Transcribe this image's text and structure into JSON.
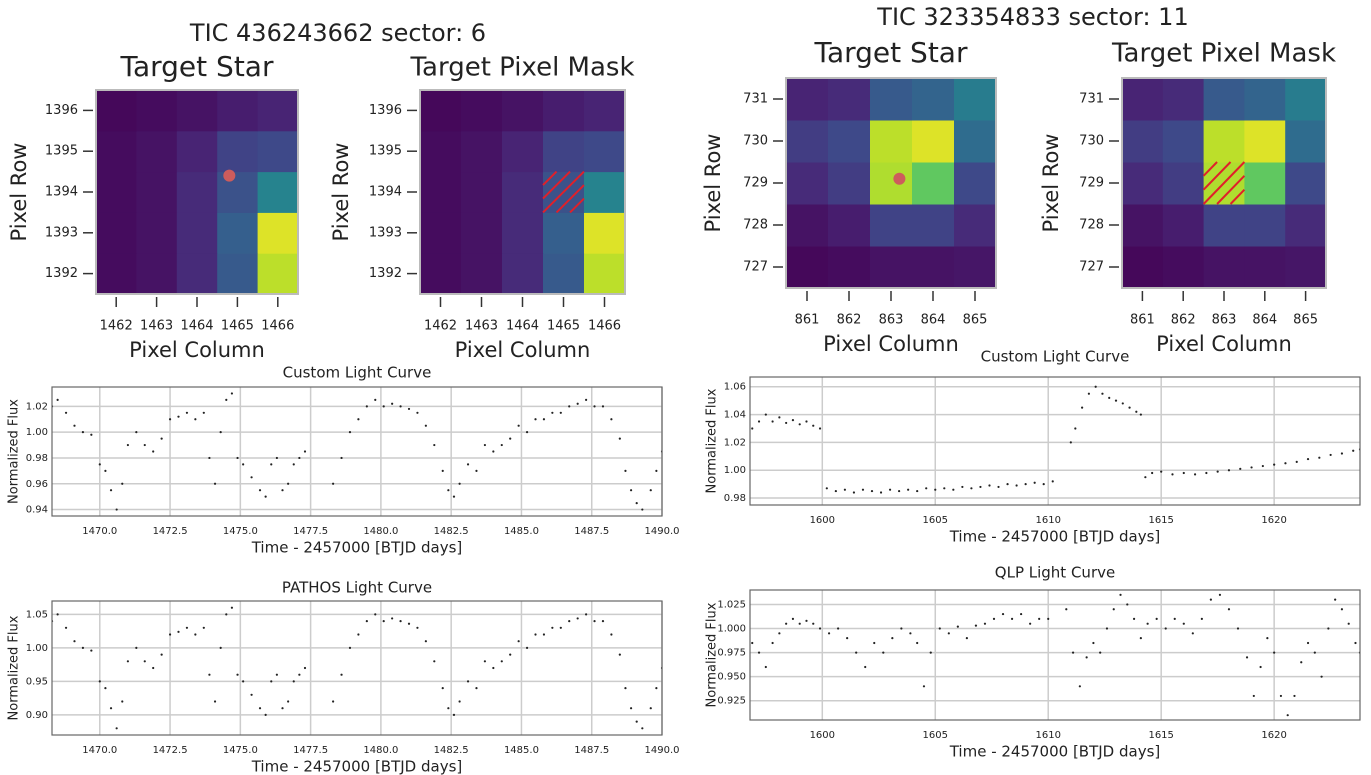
{
  "chart_data": [
    {
      "type": "heatmap",
      "suptitle": "TIC 436243662 sector: 6",
      "title": "Target Star",
      "xlabel": "Pixel Column",
      "ylabel": "Pixel Row",
      "colormap": "viridis",
      "x": [
        1462,
        1463,
        1464,
        1465,
        1466
      ],
      "y": [
        1392,
        1393,
        1394,
        1395,
        1396
      ],
      "z": [
        [
          0.03,
          0.05,
          0.12,
          0.28,
          0.9
        ],
        [
          0.03,
          0.05,
          0.12,
          0.3,
          0.95
        ],
        [
          0.03,
          0.05,
          0.12,
          0.25,
          0.45
        ],
        [
          0.03,
          0.05,
          0.1,
          0.2,
          0.22
        ],
        [
          0.02,
          0.03,
          0.05,
          0.08,
          0.1
        ]
      ],
      "xlim": [
        1461.5,
        1466.5
      ],
      "ylim": [
        1391.5,
        1396.5
      ],
      "xticks": [
        1462,
        1463,
        1464,
        1465,
        1466
      ],
      "yticks": [
        1392,
        1393,
        1394,
        1395,
        1396
      ],
      "target": {
        "x": 1464.8,
        "y": 1394.4,
        "color": "#cd5c5c"
      }
    },
    {
      "type": "heatmap",
      "title": "Target Pixel Mask",
      "xlabel": "Pixel Column",
      "ylabel": "Pixel Row",
      "colormap": "viridis",
      "x": [
        1462,
        1463,
        1464,
        1465,
        1466
      ],
      "y": [
        1392,
        1393,
        1394,
        1395,
        1396
      ],
      "z": [
        [
          0.03,
          0.05,
          0.12,
          0.28,
          0.9
        ],
        [
          0.03,
          0.05,
          0.12,
          0.3,
          0.95
        ],
        [
          0.03,
          0.05,
          0.12,
          0.25,
          0.45
        ],
        [
          0.03,
          0.05,
          0.1,
          0.2,
          0.22
        ],
        [
          0.02,
          0.03,
          0.05,
          0.08,
          0.1
        ]
      ],
      "xlim": [
        1461.5,
        1466.5
      ],
      "ylim": [
        1391.5,
        1396.5
      ],
      "xticks": [
        1462,
        1463,
        1464,
        1465,
        1466
      ],
      "yticks": [
        1392,
        1393,
        1394,
        1395,
        1396
      ],
      "mask": {
        "x": 1465,
        "y": 1394,
        "color": "#e0202a"
      }
    },
    {
      "type": "scatter",
      "title": "Custom Light Curve",
      "xlabel": "Time - 2457000 [BTJD days]",
      "ylabel": "Normalized Flux",
      "color": "#222",
      "grid": true,
      "xlim": [
        1468.3,
        1490.0
      ],
      "ylim": [
        0.935,
        1.035
      ],
      "xticks": [
        {
          "value": 1470,
          "label": "1470.0"
        },
        {
          "value": 1472.5,
          "label": "1472.5"
        },
        {
          "value": 1475,
          "label": "1475.0"
        },
        {
          "value": 1477.5,
          "label": "1477.5"
        },
        {
          "value": 1480,
          "label": "1480.0"
        },
        {
          "value": 1482.5,
          "label": "1482.5"
        },
        {
          "value": 1485,
          "label": "1485.0"
        },
        {
          "value": 1487.5,
          "label": "1487.5"
        },
        {
          "value": 1490,
          "label": "1490.0"
        }
      ],
      "yticks": [
        0.94,
        0.96,
        0.98,
        {
          "value": 1,
          "label": "1.00"
        },
        1.02
      ],
      "x": [
        1468.3,
        1468.5,
        1468.8,
        1469.1,
        1469.4,
        1469.7,
        1470.0,
        1470.2,
        1470.4,
        1470.6,
        1470.8,
        1471.0,
        1471.3,
        1471.6,
        1471.9,
        1472.2,
        1472.5,
        1472.8,
        1473.1,
        1473.4,
        1473.7,
        1473.9,
        1474.1,
        1474.3,
        1474.5,
        1474.7,
        1474.9,
        1475.1,
        1475.4,
        1475.7,
        1475.9,
        1476.1,
        1476.3,
        1476.5,
        1476.7,
        1476.9,
        1477.1,
        1477.3,
        1478.3,
        1478.6,
        1478.9,
        1479.2,
        1479.5,
        1479.8,
        1480.1,
        1480.4,
        1480.7,
        1481.0,
        1481.3,
        1481.6,
        1481.9,
        1482.2,
        1482.4,
        1482.6,
        1482.8,
        1483.1,
        1483.4,
        1483.7,
        1484.0,
        1484.3,
        1484.6,
        1484.9,
        1485.2,
        1485.5,
        1485.8,
        1486.1,
        1486.4,
        1486.7,
        1487.0,
        1487.3,
        1487.6,
        1487.9,
        1488.2,
        1488.5,
        1488.7,
        1488.9,
        1489.1,
        1489.3,
        1489.6,
        1489.8,
        1490.0
      ],
      "y": [
        1.02,
        1.025,
        1.015,
        1.005,
        1.0,
        0.998,
        0.975,
        0.97,
        0.955,
        0.94,
        0.96,
        0.99,
        1.0,
        0.99,
        0.985,
        0.995,
        1.01,
        1.012,
        1.015,
        1.01,
        1.015,
        0.98,
        0.96,
        1.0,
        1.025,
        1.03,
        0.98,
        0.975,
        0.965,
        0.955,
        0.95,
        0.975,
        0.98,
        0.955,
        0.96,
        0.975,
        0.98,
        0.985,
        0.96,
        0.98,
        1.0,
        1.01,
        1.02,
        1.025,
        1.02,
        1.022,
        1.02,
        1.018,
        1.015,
        1.005,
        0.99,
        0.97,
        0.955,
        0.95,
        0.96,
        0.975,
        0.97,
        0.99,
        0.985,
        0.99,
        0.995,
        1.005,
        1.0,
        1.01,
        1.01,
        1.015,
        1.015,
        1.02,
        1.022,
        1.025,
        1.02,
        1.02,
        1.01,
        0.995,
        0.97,
        0.955,
        0.945,
        0.94,
        0.955,
        0.97,
        0.985
      ]
    },
    {
      "type": "scatter",
      "title": "PATHOS Light Curve",
      "xlabel": "Time - 2457000 [BTJD days]",
      "ylabel": "Normalized Flux",
      "color": "#222",
      "grid": true,
      "xlim": [
        1468.3,
        1490.0
      ],
      "ylim": [
        0.87,
        1.07
      ],
      "xticks": [
        {
          "value": 1470,
          "label": "1470.0"
        },
        {
          "value": 1472.5,
          "label": "1472.5"
        },
        {
          "value": 1475,
          "label": "1475.0"
        },
        {
          "value": 1477.5,
          "label": "1477.5"
        },
        {
          "value": 1480,
          "label": "1480.0"
        },
        {
          "value": 1482.5,
          "label": "1482.5"
        },
        {
          "value": 1485,
          "label": "1485.0"
        },
        {
          "value": 1487.5,
          "label": "1487.5"
        },
        {
          "value": 1490,
          "label": "1490.0"
        }
      ],
      "yticks": [
        {
          "value": 0.9,
          "label": "0.90"
        },
        0.95,
        {
          "value": 1,
          "label": "1.00"
        },
        1.05
      ],
      "x": [
        1468.3,
        1468.5,
        1468.8,
        1469.1,
        1469.4,
        1469.7,
        1470.0,
        1470.2,
        1470.4,
        1470.6,
        1470.8,
        1471.0,
        1471.3,
        1471.6,
        1471.9,
        1472.2,
        1472.5,
        1472.8,
        1473.1,
        1473.4,
        1473.7,
        1473.9,
        1474.1,
        1474.3,
        1474.5,
        1474.7,
        1474.9,
        1475.1,
        1475.4,
        1475.7,
        1475.9,
        1476.1,
        1476.3,
        1476.5,
        1476.7,
        1476.9,
        1477.1,
        1477.3,
        1478.3,
        1478.6,
        1478.9,
        1479.2,
        1479.5,
        1479.8,
        1480.1,
        1480.4,
        1480.7,
        1481.0,
        1481.3,
        1481.6,
        1481.9,
        1482.2,
        1482.4,
        1482.6,
        1482.8,
        1483.1,
        1483.4,
        1483.7,
        1484.0,
        1484.3,
        1484.6,
        1484.9,
        1485.2,
        1485.5,
        1485.8,
        1486.1,
        1486.4,
        1486.7,
        1487.0,
        1487.3,
        1487.6,
        1487.9,
        1488.2,
        1488.5,
        1488.7,
        1488.9,
        1489.1,
        1489.3,
        1489.6,
        1489.8,
        1490.0
      ],
      "y": [
        1.04,
        1.05,
        1.03,
        1.01,
        1.0,
        0.996,
        0.95,
        0.94,
        0.91,
        0.88,
        0.92,
        0.98,
        1.0,
        0.98,
        0.97,
        0.99,
        1.02,
        1.024,
        1.03,
        1.02,
        1.03,
        0.96,
        0.92,
        1.0,
        1.05,
        1.06,
        0.96,
        0.95,
        0.93,
        0.91,
        0.9,
        0.95,
        0.96,
        0.91,
        0.92,
        0.95,
        0.96,
        0.97,
        0.92,
        0.96,
        1.0,
        1.02,
        1.04,
        1.05,
        1.04,
        1.044,
        1.04,
        1.036,
        1.03,
        1.01,
        0.98,
        0.94,
        0.91,
        0.9,
        0.92,
        0.95,
        0.94,
        0.98,
        0.97,
        0.98,
        0.99,
        1.01,
        1.0,
        1.02,
        1.02,
        1.03,
        1.03,
        1.04,
        1.044,
        1.05,
        1.04,
        1.04,
        1.02,
        0.99,
        0.94,
        0.91,
        0.89,
        0.88,
        0.91,
        0.94,
        0.97
      ]
    },
    {
      "type": "heatmap",
      "suptitle": "TIC 323354833 sector: 11",
      "title": "Target Star",
      "xlabel": "Pixel Column",
      "ylabel": "Pixel Row",
      "colormap": "viridis",
      "x": [
        861,
        862,
        863,
        864,
        865
      ],
      "y": [
        727,
        728,
        729,
        730,
        731
      ],
      "z": [
        [
          0.02,
          0.03,
          0.05,
          0.05,
          0.06
        ],
        [
          0.05,
          0.08,
          0.2,
          0.2,
          0.12
        ],
        [
          0.12,
          0.18,
          0.88,
          0.75,
          0.22
        ],
        [
          0.18,
          0.22,
          0.9,
          0.95,
          0.35
        ],
        [
          0.1,
          0.12,
          0.28,
          0.32,
          0.42
        ]
      ],
      "xlim": [
        860.5,
        865.5
      ],
      "ylim": [
        726.5,
        731.5
      ],
      "xticks": [
        861,
        862,
        863,
        864,
        865
      ],
      "yticks": [
        727,
        728,
        729,
        730,
        731
      ],
      "target": {
        "x": 863.2,
        "y": 729.1,
        "color": "#cd5c5c"
      }
    },
    {
      "type": "heatmap",
      "title": "Target Pixel Mask",
      "xlabel": "Pixel Column",
      "ylabel": "Pixel Row",
      "colormap": "viridis",
      "x": [
        861,
        862,
        863,
        864,
        865
      ],
      "y": [
        727,
        728,
        729,
        730,
        731
      ],
      "z": [
        [
          0.02,
          0.03,
          0.05,
          0.05,
          0.06
        ],
        [
          0.05,
          0.08,
          0.2,
          0.2,
          0.12
        ],
        [
          0.12,
          0.18,
          0.88,
          0.75,
          0.22
        ],
        [
          0.18,
          0.22,
          0.9,
          0.95,
          0.35
        ],
        [
          0.1,
          0.12,
          0.28,
          0.32,
          0.42
        ]
      ],
      "xlim": [
        860.5,
        865.5
      ],
      "ylim": [
        726.5,
        731.5
      ],
      "xticks": [
        861,
        862,
        863,
        864,
        865
      ],
      "yticks": [
        727,
        728,
        729,
        730,
        731
      ],
      "mask": {
        "x": 863,
        "y": 729,
        "color": "#e0202a"
      }
    },
    {
      "type": "scatter",
      "title": "Custom Light Curve",
      "xlabel": "Time - 2457000 [BTJD days]",
      "ylabel": "Normalized Flux",
      "color": "#222",
      "grid": true,
      "xlim": [
        1596.8,
        1623.8
      ],
      "ylim": [
        0.975,
        1.067
      ],
      "xticks": [
        1600,
        1605,
        1610,
        1615,
        1620
      ],
      "yticks": [
        0.98,
        {
          "value": 1,
          "label": "1.00"
        },
        1.02,
        1.04,
        1.06
      ],
      "x": [
        1596.9,
        1597.2,
        1597.5,
        1597.8,
        1598.1,
        1598.4,
        1598.7,
        1599.0,
        1599.3,
        1599.6,
        1599.9,
        1600.2,
        1600.6,
        1601.0,
        1601.4,
        1601.8,
        1602.2,
        1602.6,
        1603.0,
        1603.4,
        1603.8,
        1604.2,
        1604.6,
        1605.0,
        1605.4,
        1605.8,
        1606.2,
        1606.6,
        1607.0,
        1607.4,
        1607.8,
        1608.2,
        1608.6,
        1609.0,
        1609.4,
        1609.8,
        1610.2,
        1611.0,
        1611.2,
        1611.5,
        1611.8,
        1612.1,
        1612.4,
        1612.7,
        1613.0,
        1613.3,
        1613.6,
        1613.9,
        1614.1,
        1614.3,
        1614.6,
        1615.0,
        1615.5,
        1616.0,
        1616.5,
        1617.0,
        1617.5,
        1618.0,
        1618.5,
        1619.0,
        1619.5,
        1620.0,
        1620.5,
        1621.0,
        1621.5,
        1622.0,
        1622.5,
        1623.0,
        1623.5,
        1623.8
      ],
      "y": [
        1.03,
        1.035,
        1.04,
        1.035,
        1.038,
        1.034,
        1.036,
        1.033,
        1.035,
        1.032,
        1.03,
        0.987,
        0.985,
        0.986,
        0.984,
        0.986,
        0.985,
        0.984,
        0.986,
        0.985,
        0.986,
        0.985,
        0.987,
        0.986,
        0.987,
        0.986,
        0.988,
        0.987,
        0.988,
        0.989,
        0.988,
        0.99,
        0.989,
        0.99,
        0.991,
        0.99,
        0.992,
        1.02,
        1.03,
        1.045,
        1.055,
        1.06,
        1.055,
        1.052,
        1.05,
        1.048,
        1.045,
        1.042,
        1.04,
        0.995,
        0.998,
        0.999,
        0.997,
        0.998,
        0.997,
        0.998,
        0.999,
        1.0,
        1.001,
        1.002,
        1.003,
        1.004,
        1.005,
        1.006,
        1.008,
        1.009,
        1.011,
        1.012,
        1.014,
        1.015
      ]
    },
    {
      "type": "scatter",
      "title": "QLP Light Curve",
      "xlabel": "Time - 2457000 [BTJD days]",
      "ylabel": "Normalized Flux",
      "color": "#222",
      "grid": true,
      "xlim": [
        1596.8,
        1623.8
      ],
      "ylim": [
        0.905,
        1.04
      ],
      "xticks": [
        1600,
        1605,
        1610,
        1615,
        1620
      ],
      "yticks": [
        0.925,
        {
          "value": 0.95,
          "label": "0.950"
        },
        0.975,
        {
          "value": 1,
          "label": "1.000"
        },
        1.025
      ],
      "x": [
        1596.9,
        1597.2,
        1597.5,
        1597.8,
        1598.1,
        1598.4,
        1598.7,
        1599.0,
        1599.3,
        1599.6,
        1599.9,
        1600.3,
        1600.7,
        1601.1,
        1601.5,
        1601.9,
        1602.3,
        1602.7,
        1603.1,
        1603.5,
        1603.9,
        1604.2,
        1604.5,
        1604.8,
        1605.2,
        1605.6,
        1606.0,
        1606.4,
        1606.8,
        1607.2,
        1607.6,
        1608.0,
        1608.4,
        1608.8,
        1609.2,
        1609.6,
        1610.0,
        1610.8,
        1611.1,
        1611.4,
        1611.7,
        1612.0,
        1612.3,
        1612.6,
        1612.9,
        1613.2,
        1613.5,
        1613.8,
        1614.1,
        1614.4,
        1614.8,
        1615.2,
        1615.6,
        1616.0,
        1616.4,
        1616.8,
        1617.2,
        1617.6,
        1618.0,
        1618.4,
        1618.8,
        1619.1,
        1619.4,
        1619.7,
        1620.0,
        1620.3,
        1620.6,
        1620.9,
        1621.2,
        1621.5,
        1621.8,
        1622.1,
        1622.4,
        1622.7,
        1623.0,
        1623.3,
        1623.6,
        1623.8
      ],
      "y": [
        0.985,
        0.975,
        0.96,
        0.985,
        0.995,
        1.005,
        1.01,
        1.005,
        1.008,
        1.005,
        1.0,
        0.995,
        1.0,
        0.99,
        0.975,
        0.96,
        0.985,
        0.975,
        0.99,
        1.0,
        0.995,
        0.985,
        0.94,
        0.975,
        1.0,
        0.995,
        1.002,
        0.99,
        1.003,
        1.005,
        1.01,
        1.015,
        1.01,
        1.015,
        1.005,
        1.01,
        1.01,
        1.02,
        0.975,
        0.94,
        0.97,
        0.985,
        0.975,
        1.0,
        1.02,
        1.035,
        1.025,
        1.01,
        0.99,
        1.005,
        1.01,
        1.0,
        1.01,
        1.005,
        0.995,
        1.01,
        1.03,
        1.035,
        1.02,
        1.0,
        0.97,
        0.93,
        0.96,
        0.99,
        0.975,
        0.93,
        0.91,
        0.93,
        0.965,
        0.985,
        0.975,
        0.95,
        1.0,
        1.03,
        1.02,
        1.005,
        0.985,
        0.975
      ]
    }
  ]
}
